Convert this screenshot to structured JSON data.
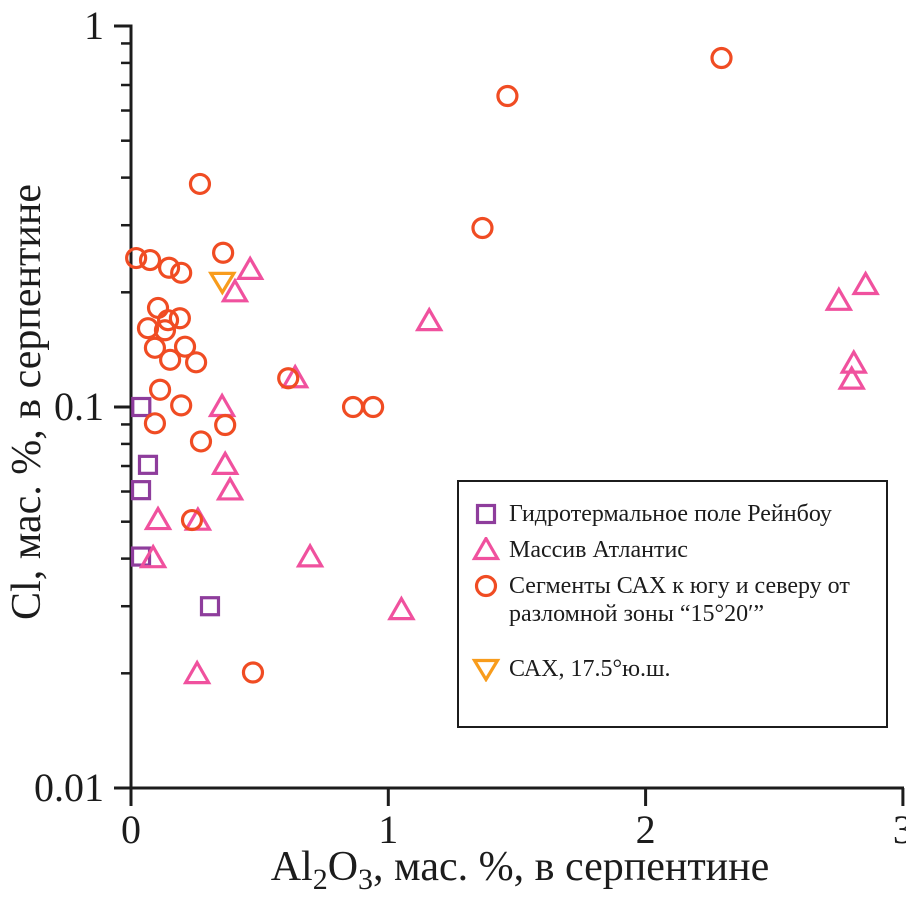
{
  "chart_data": {
    "type": "scatter",
    "title": "",
    "xlabel_plain": "Al2O3, мас. %, в серпентине",
    "xlabel_parts": [
      {
        "t": "Al"
      },
      {
        "t": "2",
        "sub": true
      },
      {
        "t": "O"
      },
      {
        "t": "3",
        "sub": true
      },
      {
        "t": ", мас. %, в серпентине"
      }
    ],
    "ylabel": "Cl, мас. %, в серпентине",
    "x_axis": {
      "scale": "linear",
      "min": 0,
      "max": 3,
      "ticks": [
        {
          "v": 0,
          "label": "0"
        },
        {
          "v": 1,
          "label": "1"
        },
        {
          "v": 2,
          "label": "2"
        },
        {
          "v": 3,
          "label": "3"
        }
      ]
    },
    "y_axis": {
      "scale": "log",
      "min": 0.01,
      "max": 1,
      "major_ticks": [
        {
          "v": 1,
          "label": "1"
        },
        {
          "v": 0.1,
          "label": "0.1"
        },
        {
          "v": 0.01,
          "label": "0.01"
        }
      ],
      "minor_ticks": [
        0.9,
        0.8,
        0.7,
        0.6,
        0.5,
        0.4,
        0.3,
        0.2,
        0.09,
        0.08,
        0.07,
        0.06,
        0.05,
        0.04,
        0.03,
        0.02
      ]
    },
    "grid": false,
    "legend_position": "inside lower right",
    "series": [
      {
        "key": "rainbow",
        "name": "Гидротермальное  поле Рейнбоу",
        "marker": "square",
        "color": "#8E3D9C",
        "points": [
          [
            0.04,
            0.1
          ],
          [
            0.066,
            0.0705
          ],
          [
            0.039,
            0.0605
          ],
          [
            0.039,
            0.0405
          ],
          [
            0.307,
            0.03
          ]
        ]
      },
      {
        "key": "atlantis",
        "name": "Массив Атлантис",
        "marker": "triangle-up",
        "color": "#F0519E",
        "points": [
          [
            0.463,
            0.229
          ],
          [
            0.404,
            0.2
          ],
          [
            0.354,
            0.1
          ],
          [
            0.638,
            0.119
          ],
          [
            1.159,
            0.168
          ],
          [
            0.366,
            0.0705
          ],
          [
            0.385,
            0.0604
          ],
          [
            0.086,
            0.0401
          ],
          [
            0.696,
            0.0403
          ],
          [
            0.105,
            0.0505
          ],
          [
            0.26,
            0.0503
          ],
          [
            0.257,
            0.0199
          ],
          [
            1.051,
            0.0293
          ],
          [
            2.751,
            0.19
          ],
          [
            2.855,
            0.209
          ],
          [
            2.809,
            0.13
          ],
          [
            2.801,
            0.118
          ]
        ]
      },
      {
        "key": "mar-segments",
        "name": "Сегменты САХ к югу и северу от разломной зоны “15°20′”",
        "marker": "circle",
        "color": "#F04C23",
        "points": [
          [
            0.268,
            0.385
          ],
          [
            0.02,
            0.246
          ],
          [
            0.074,
            0.243
          ],
          [
            0.148,
            0.232
          ],
          [
            0.195,
            0.225
          ],
          [
            0.358,
            0.254
          ],
          [
            0.105,
            0.182
          ],
          [
            0.144,
            0.169
          ],
          [
            0.19,
            0.171
          ],
          [
            0.066,
            0.161
          ],
          [
            0.132,
            0.159
          ],
          [
            0.093,
            0.143
          ],
          [
            0.21,
            0.144
          ],
          [
            0.152,
            0.133
          ],
          [
            0.253,
            0.131
          ],
          [
            0.113,
            0.111
          ],
          [
            0.195,
            0.101
          ],
          [
            0.093,
            0.0906
          ],
          [
            0.366,
            0.0897
          ],
          [
            0.272,
            0.0812
          ],
          [
            0.611,
            0.119
          ],
          [
            0.863,
            0.1
          ],
          [
            0.941,
            0.1
          ],
          [
            0.237,
            0.0505
          ],
          [
            0.474,
            0.0201
          ],
          [
            1.366,
            0.295
          ],
          [
            1.463,
            0.655
          ],
          [
            2.295,
            0.824
          ]
        ]
      },
      {
        "key": "sax-17-5",
        "name": "САХ, 17.5°ю.ш.",
        "marker": "triangle-down",
        "color": "#F89C1C",
        "points": [
          [
            0.355,
            0.213
          ]
        ]
      }
    ]
  },
  "colors": {
    "axis": "#1c1c1c",
    "background": "#ffffff"
  }
}
